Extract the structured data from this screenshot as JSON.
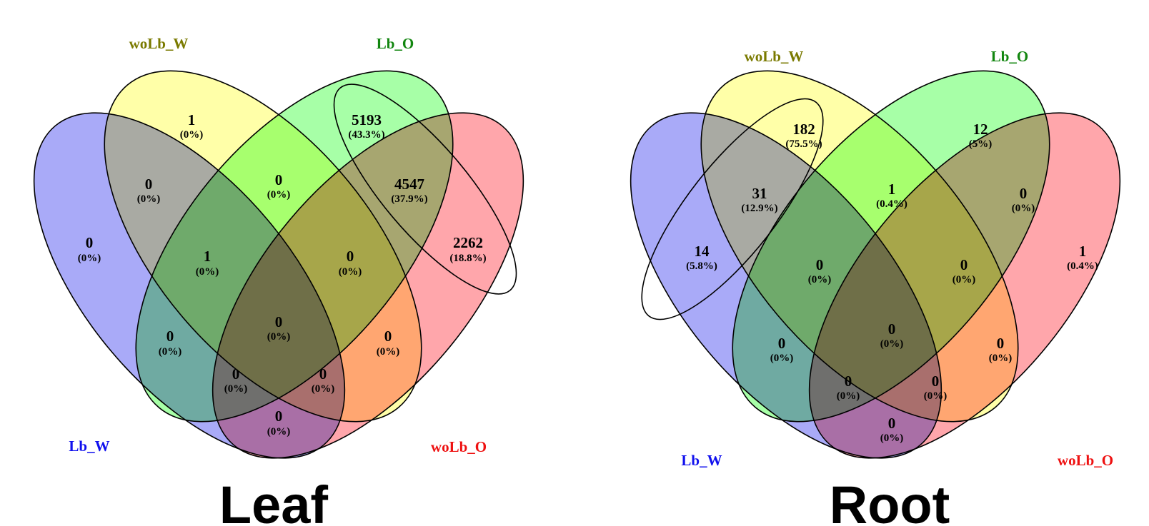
{
  "sets": [
    {
      "name": "Lb_W",
      "color": "#1010ee"
    },
    {
      "name": "woLb_W",
      "color": "#7a7a00"
    },
    {
      "name": "Lb_O",
      "color": "#12860f"
    },
    {
      "name": "woLb_O",
      "color": "#ee1010"
    }
  ],
  "fill_colors": [
    "#a9aaf8",
    "#ffffa8",
    "#a7ffa7",
    "#ffa6ab"
  ],
  "panels": [
    {
      "title": "Leaf",
      "regions": [
        {
          "sets": [
            "Lb_W"
          ],
          "count": "0",
          "pct": "(0%)"
        },
        {
          "sets": [
            "woLb_W"
          ],
          "count": "1",
          "pct": "(0%)"
        },
        {
          "sets": [
            "Lb_O"
          ],
          "count": "5193",
          "pct": "(43.3%)"
        },
        {
          "sets": [
            "woLb_O"
          ],
          "count": "2262",
          "pct": "(18.8%)"
        },
        {
          "sets": [
            "Lb_W",
            "woLb_W"
          ],
          "count": "0",
          "pct": "(0%)"
        },
        {
          "sets": [
            "woLb_W",
            "Lb_O"
          ],
          "count": "0",
          "pct": "(0%)"
        },
        {
          "sets": [
            "Lb_O",
            "woLb_O"
          ],
          "count": "4547",
          "pct": "(37.9%)"
        },
        {
          "sets": [
            "Lb_W",
            "woLb_W",
            "Lb_O"
          ],
          "count": "1",
          "pct": "(0%)"
        },
        {
          "sets": [
            "woLb_W",
            "Lb_O",
            "woLb_O"
          ],
          "count": "0",
          "pct": "(0%)"
        },
        {
          "sets": [
            "Lb_W",
            "woLb_W",
            "Lb_O",
            "woLb_O"
          ],
          "count": "0",
          "pct": "(0%)"
        },
        {
          "sets": [
            "Lb_W",
            "Lb_O"
          ],
          "count": "0",
          "pct": "(0%)"
        },
        {
          "sets": [
            "woLb_W",
            "woLb_O"
          ],
          "count": "0",
          "pct": "(0%)"
        },
        {
          "sets": [
            "Lb_W",
            "Lb_O",
            "woLb_O"
          ],
          "count": "0",
          "pct": "(0%)"
        },
        {
          "sets": [
            "Lb_W",
            "woLb_W",
            "woLb_O"
          ],
          "count": "0",
          "pct": "(0%)"
        },
        {
          "sets": [
            "Lb_W",
            "woLb_O"
          ],
          "count": "0",
          "pct": "(0%)"
        }
      ]
    },
    {
      "title": "Root",
      "regions": [
        {
          "sets": [
            "Lb_W"
          ],
          "count": "14",
          "pct": "(5.8%)"
        },
        {
          "sets": [
            "woLb_W"
          ],
          "count": "182",
          "pct": "(75.5%)"
        },
        {
          "sets": [
            "Lb_O"
          ],
          "count": "12",
          "pct": "(5%)"
        },
        {
          "sets": [
            "woLb_O"
          ],
          "count": "1",
          "pct": "(0.4%)"
        },
        {
          "sets": [
            "Lb_W",
            "woLb_W"
          ],
          "count": "31",
          "pct": "(12.9%)"
        },
        {
          "sets": [
            "woLb_W",
            "Lb_O"
          ],
          "count": "1",
          "pct": "(0.4%)"
        },
        {
          "sets": [
            "Lb_O",
            "woLb_O"
          ],
          "count": "0",
          "pct": "(0%)"
        },
        {
          "sets": [
            "Lb_W",
            "woLb_W",
            "Lb_O"
          ],
          "count": "0",
          "pct": "(0%)"
        },
        {
          "sets": [
            "woLb_W",
            "Lb_O",
            "woLb_O"
          ],
          "count": "0",
          "pct": "(0%)"
        },
        {
          "sets": [
            "Lb_W",
            "woLb_W",
            "Lb_O",
            "woLb_O"
          ],
          "count": "0",
          "pct": "(0%)"
        },
        {
          "sets": [
            "Lb_W",
            "Lb_O"
          ],
          "count": "0",
          "pct": "(0%)"
        },
        {
          "sets": [
            "woLb_W",
            "woLb_O"
          ],
          "count": "0",
          "pct": "(0%)"
        },
        {
          "sets": [
            "Lb_W",
            "Lb_O",
            "woLb_O"
          ],
          "count": "0",
          "pct": "(0%)"
        },
        {
          "sets": [
            "Lb_W",
            "woLb_W",
            "woLb_O"
          ],
          "count": "0",
          "pct": "(0%)"
        },
        {
          "sets": [
            "Lb_W",
            "woLb_O"
          ],
          "count": "0",
          "pct": "(0%)"
        }
      ]
    }
  ]
}
